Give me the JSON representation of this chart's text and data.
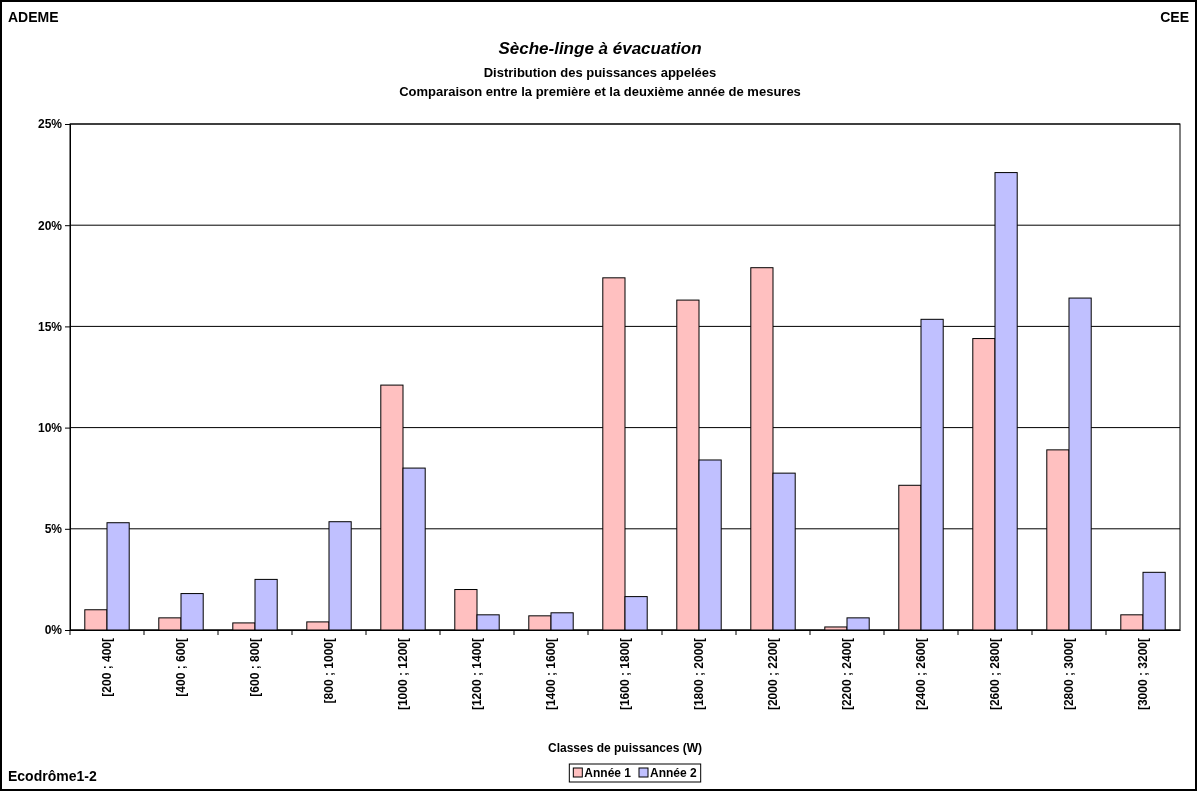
{
  "chart_data": {
    "type": "bar",
    "title": "Sèche-linge à évacuation",
    "subtitle": "Distribution des puissances appelées\nComparaison entre la première et la deuxième année de mesures",
    "xlabel": "Classes de puissances (W)",
    "categories": [
      "[200 ; 400[",
      "[400 ; 600[",
      "[600 ; 800[",
      "[800 ; 1000[",
      "[1000 ; 1200[",
      "[1200 ; 1400[",
      "[1400 ; 1600[",
      "[1600 ; 1800[",
      "[1800 ; 2000[",
      "[2000 ; 2200[",
      "[2200 ; 2400[",
      "[2400 ; 2600[",
      "[2600 ; 2800[",
      "[2800 ; 3000[",
      "[3000 ; 3200["
    ],
    "series": [
      {
        "name": "Année 1",
        "color": "#ffc0c0",
        "values": [
          1.0,
          0.6,
          0.35,
          0.4,
          12.1,
          2.0,
          0.7,
          17.4,
          16.3,
          17.9,
          0.15,
          7.15,
          14.4,
          8.9,
          0.75
        ]
      },
      {
        "name": "Année 2",
        "color": "#c0c0ff",
        "values": [
          5.3,
          1.8,
          2.5,
          5.35,
          8.0,
          0.75,
          0.85,
          1.65,
          8.4,
          7.75,
          0.6,
          15.35,
          22.6,
          16.4,
          2.85
        ]
      }
    ],
    "ylim": [
      0,
      25
    ],
    "yticks": [
      {
        "value": 0,
        "label": "0%"
      },
      {
        "value": 5,
        "label": "5%"
      },
      {
        "value": 10,
        "label": "10%"
      },
      {
        "value": 15,
        "label": "15%"
      },
      {
        "value": 20,
        "label": "20%"
      },
      {
        "value": 25,
        "label": "25%"
      }
    ],
    "grid": "y",
    "legend": "bottom",
    "annotations": [
      "ADEME",
      "CEE",
      "Ecodrôme1-2"
    ]
  }
}
